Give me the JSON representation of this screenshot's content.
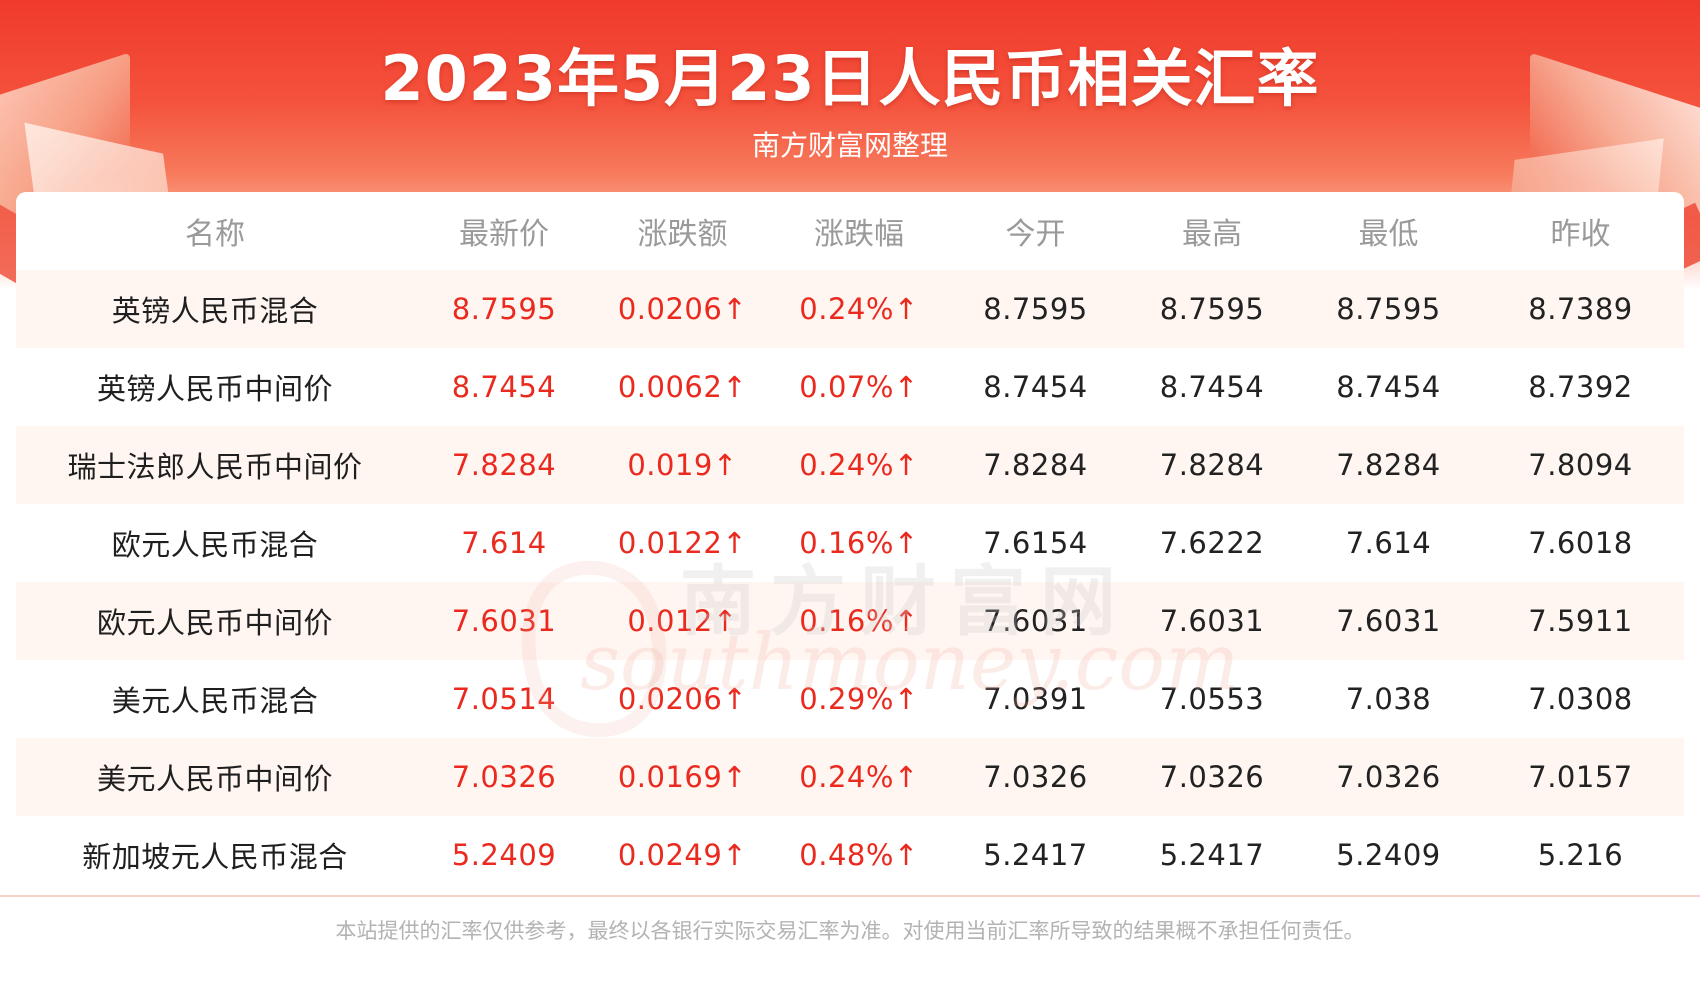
{
  "header": {
    "title": "2023年5月23日人民币相关汇率",
    "subtitle": "南方财富网整理"
  },
  "table": {
    "columns": [
      "名称",
      "最新价",
      "涨跌额",
      "涨跌幅",
      "今开",
      "最高",
      "最低",
      "昨收"
    ],
    "rows": [
      {
        "name": "英镑人民币混合",
        "latest": "8.7595",
        "change": "0.0206↑",
        "change_pct": "0.24%↑",
        "open": "8.7595",
        "high": "8.7595",
        "low": "8.7595",
        "prev_close": "8.7389"
      },
      {
        "name": "英镑人民币中间价",
        "latest": "8.7454",
        "change": "0.0062↑",
        "change_pct": "0.07%↑",
        "open": "8.7454",
        "high": "8.7454",
        "low": "8.7454",
        "prev_close": "8.7392"
      },
      {
        "name": "瑞士法郎人民币中间价",
        "latest": "7.8284",
        "change": "0.019↑",
        "change_pct": "0.24%↑",
        "open": "7.8284",
        "high": "7.8284",
        "low": "7.8284",
        "prev_close": "7.8094"
      },
      {
        "name": "欧元人民币混合",
        "latest": "7.614",
        "change": "0.0122↑",
        "change_pct": "0.16%↑",
        "open": "7.6154",
        "high": "7.6222",
        "low": "7.614",
        "prev_close": "7.6018"
      },
      {
        "name": "欧元人民币中间价",
        "latest": "7.6031",
        "change": "0.012↑",
        "change_pct": "0.16%↑",
        "open": "7.6031",
        "high": "7.6031",
        "low": "7.6031",
        "prev_close": "7.5911"
      },
      {
        "name": "美元人民币混合",
        "latest": "7.0514",
        "change": "0.0206↑",
        "change_pct": "0.29%↑",
        "open": "7.0391",
        "high": "7.0553",
        "low": "7.038",
        "prev_close": "7.0308"
      },
      {
        "name": "美元人民币中间价",
        "latest": "7.0326",
        "change": "0.0169↑",
        "change_pct": "0.24%↑",
        "open": "7.0326",
        "high": "7.0326",
        "low": "7.0326",
        "prev_close": "7.0157"
      },
      {
        "name": "新加坡元人民币混合",
        "latest": "5.2409",
        "change": "0.0249↑",
        "change_pct": "0.48%↑",
        "open": "5.2417",
        "high": "5.2417",
        "low": "5.2409",
        "prev_close": "5.216"
      }
    ]
  },
  "watermark": {
    "cn": "南方财富网",
    "en": "southmoney.com"
  },
  "footer": {
    "disclaimer": "本站提供的汇率仅供参考，最终以各银行实际交易汇率为准。对使用当前汇率所导致的结果概不承担任何责任。"
  },
  "colors": {
    "header_red": "#f03a2c",
    "rise_red": "#ea2a1f",
    "row_tint": "#fff6f2",
    "header_text_gray": "#9a9a9a"
  }
}
